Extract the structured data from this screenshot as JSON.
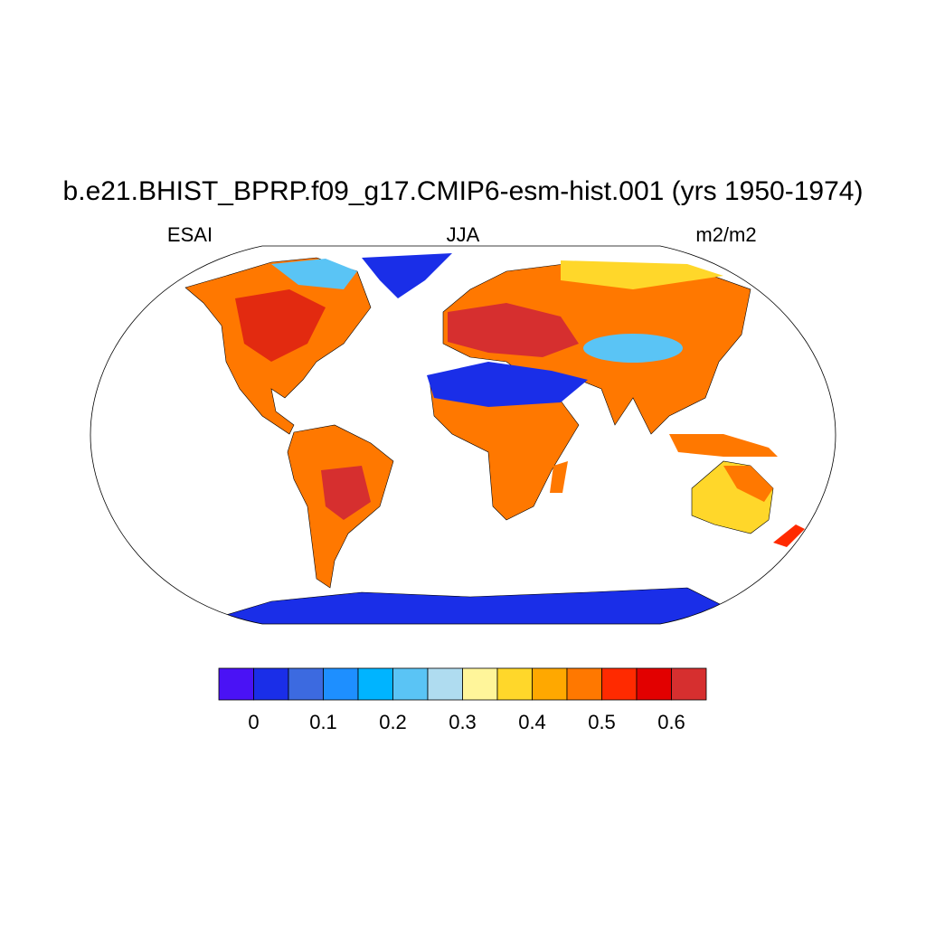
{
  "header": {
    "title": "b.e21.BHIST_BPRP.f09_g17.CMIP6-esm-hist.001 (yrs 1950-1974)",
    "left": "ESAI",
    "center": "JJA",
    "right": "m2/m2"
  },
  "colorbar": {
    "levels": [
      0,
      0.05,
      0.1,
      0.15,
      0.2,
      0.25,
      0.3,
      0.35,
      0.4,
      0.45,
      0.5,
      0.55,
      0.6
    ],
    "ticks": [
      0,
      0.1,
      0.2,
      0.3,
      0.4,
      0.5,
      0.6
    ],
    "colors": [
      "#4a12f5",
      "#1a2ee8",
      "#3c6ae0",
      "#1e8fff",
      "#00b4ff",
      "#5ac4f5",
      "#afdcf0",
      "#fff59a",
      "#ffd72a",
      "#ffa800",
      "#ff7800",
      "#ff2a00",
      "#e20000",
      "#d62f2f"
    ]
  }
}
